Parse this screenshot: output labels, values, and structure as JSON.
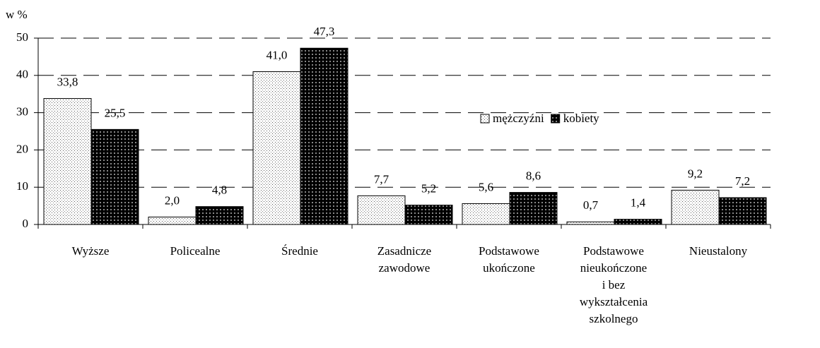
{
  "chart_data": {
    "type": "bar",
    "y_axis_label": "w %",
    "categories": [
      [
        "Wyższe"
      ],
      [
        "Policealne"
      ],
      [
        "Średnie"
      ],
      [
        "Zasadnicze",
        "zawodowe"
      ],
      [
        "Podstawowe",
        "ukończone"
      ],
      [
        "Podstawowe",
        "nieukończone",
        "i bez",
        "wykształcenia",
        "szkolnego"
      ],
      [
        "Nieustalony"
      ]
    ],
    "series": [
      {
        "name": "mężczyźni",
        "color": "#ffffff",
        "values": [
          33.8,
          2.0,
          41.0,
          7.7,
          5.6,
          0.7,
          9.2
        ],
        "value_labels": [
          "33,8",
          "2,0",
          "41,0",
          "7,7",
          "5,6",
          "0,7",
          "9,2"
        ]
      },
      {
        "name": "kobiety",
        "color": "#000000",
        "values": [
          25.5,
          4.8,
          47.3,
          5.2,
          8.6,
          1.4,
          7.2
        ],
        "value_labels": [
          "25,5",
          "4,8",
          "47,3",
          "5,2",
          "8,6",
          "1,4",
          "7,2"
        ]
      }
    ],
    "ylim": [
      0,
      50
    ],
    "yticks": [
      0,
      10,
      20,
      30,
      40,
      50
    ],
    "grid": true
  }
}
